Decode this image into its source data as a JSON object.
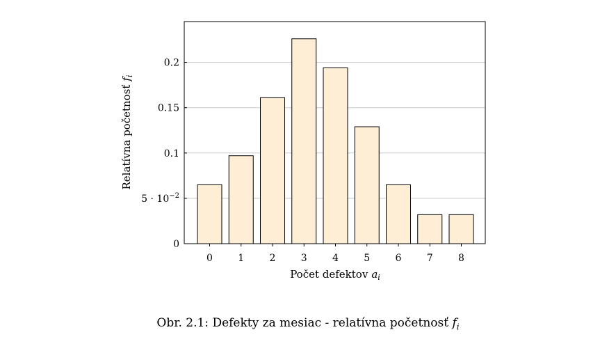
{
  "chart_data": {
    "type": "bar",
    "categories": [
      "0",
      "1",
      "2",
      "3",
      "4",
      "5",
      "6",
      "7",
      "8"
    ],
    "values": [
      0.065,
      0.097,
      0.161,
      0.226,
      0.194,
      0.129,
      0.065,
      0.032,
      0.032
    ],
    "ylim": [
      0,
      0.245
    ],
    "yticks": [
      {
        "value": 0,
        "label": "0"
      },
      {
        "value": 0.05,
        "label": "5 · 10",
        "exp": "−2"
      },
      {
        "value": 0.1,
        "label": "0.1"
      },
      {
        "value": 0.15,
        "label": "0.15"
      },
      {
        "value": 0.2,
        "label": "0.2"
      }
    ],
    "xlabel": "Počet defektov",
    "xlabel_var": "a",
    "xlabel_sub": "i",
    "ylabel": "Relatívna početnosť",
    "ylabel_var": "f",
    "ylabel_sub": "i",
    "grid": "horizontal",
    "bar_fill": "#fdeed5",
    "bar_stroke": "#000000",
    "grid_color": "#c8c8c8"
  },
  "caption": {
    "prefix": "Obr. 2.1: Defekty za mesiac - relatívna početnosť",
    "var": "f",
    "sub": "i"
  }
}
